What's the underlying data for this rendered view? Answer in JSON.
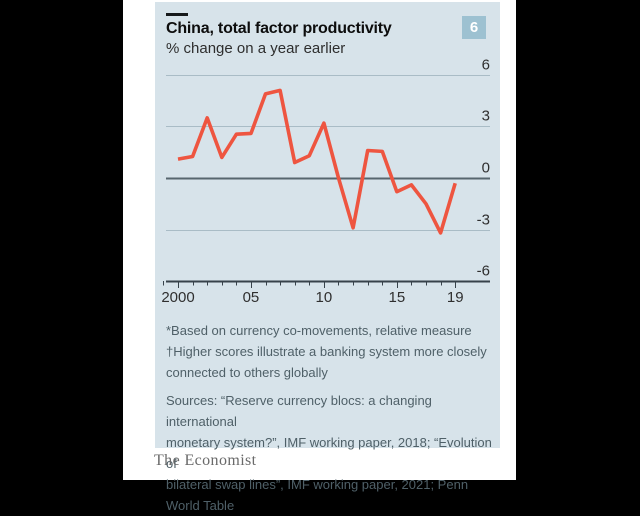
{
  "header": {
    "title": "China, total factor productivity",
    "subtitle": "% change on a year earlier",
    "badge_number": "6"
  },
  "chart_data": {
    "type": "line",
    "title": "China, total factor productivity",
    "ylabel": "% change on a year earlier",
    "x": [
      2000,
      2001,
      2002,
      2003,
      2004,
      2005,
      2006,
      2007,
      2008,
      2009,
      2010,
      2011,
      2012,
      2013,
      2014,
      2015,
      2016,
      2017,
      2018,
      2019
    ],
    "values": [
      1.1,
      1.25,
      3.5,
      1.2,
      2.55,
      2.6,
      4.9,
      5.1,
      0.9,
      1.3,
      3.2,
      0.0,
      -2.9,
      1.6,
      1.55,
      -0.8,
      -0.4,
      -1.5,
      -3.2,
      -0.3
    ],
    "ylim": [
      -6,
      6
    ],
    "yticks": [
      6,
      3,
      0,
      -3,
      -6
    ],
    "xtick_labels": [
      {
        "year": 2000,
        "label": "2000"
      },
      {
        "year": 2005,
        "label": "05"
      },
      {
        "year": 2010,
        "label": "10"
      },
      {
        "year": 2015,
        "label": "15"
      },
      {
        "year": 2019,
        "label": "19"
      }
    ],
    "grid": "horizontal",
    "zero_line": true,
    "legend": "none",
    "line_color": "#ee5540"
  },
  "footnotes": {
    "lines": [
      "*Based on currency co-movements, relative measure",
      "†Higher scores illustrate a banking system more closely",
      "connected to others globally"
    ]
  },
  "sources": {
    "lines": [
      "Sources: “Reserve currency blocs: a changing international",
      "monetary system?”, IMF working paper, 2018; “Evolution of",
      "bilateral swap lines”, IMF working paper, 2021; Penn World Table"
    ]
  },
  "branding": {
    "publication": "The Economist"
  },
  "colors": {
    "card_background": "#d7e3ea",
    "line": "#ee5540",
    "gridline": "#a9bcc6",
    "zero_line": "#57666e",
    "axis": "#37424a",
    "badge_background": "#9dc1d1",
    "text_dark": "#0d0d0d",
    "text_note": "#4f6068"
  }
}
